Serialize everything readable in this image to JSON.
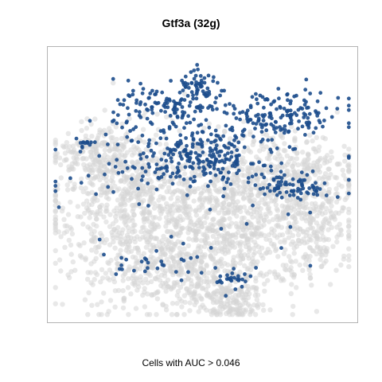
{
  "chart_data": {
    "type": "scatter",
    "title": "Gtf3a (32g)",
    "xlabel": "Cells with AUC > 0.046",
    "ylabel": "",
    "grid": false,
    "colors": {
      "background_cells": "#d6d6d6",
      "active_cells": "#1c4d8c",
      "frame": "#b3b3b3"
    },
    "series": [
      {
        "name": "",
        "role": "active",
        "clusters": [
          {
            "cx": 0.39,
            "cy": 0.78,
            "sx": 0.09,
            "sy": 0.05,
            "n": 140
          },
          {
            "cx": 0.5,
            "cy": 0.86,
            "sx": 0.04,
            "sy": 0.025,
            "n": 45
          },
          {
            "cx": 0.5,
            "cy": 0.6,
            "sx": 0.1,
            "sy": 0.05,
            "n": 220
          },
          {
            "cx": 0.75,
            "cy": 0.75,
            "sx": 0.11,
            "sy": 0.05,
            "n": 170
          },
          {
            "cx": 0.8,
            "cy": 0.49,
            "sx": 0.06,
            "sy": 0.025,
            "n": 80
          },
          {
            "cx": 0.26,
            "cy": 0.57,
            "sx": 0.1,
            "sy": 0.08,
            "n": 35
          },
          {
            "cx": 0.11,
            "cy": 0.65,
            "sx": 0.02,
            "sy": 0.01,
            "n": 14
          },
          {
            "cx": 0.6,
            "cy": 0.15,
            "sx": 0.03,
            "sy": 0.015,
            "n": 25
          },
          {
            "cx": 0.42,
            "cy": 0.2,
            "sx": 0.1,
            "sy": 0.03,
            "n": 18
          },
          {
            "cx": 0.45,
            "cy": 0.45,
            "sx": 0.3,
            "sy": 0.15,
            "n": 30
          },
          {
            "cx": 0.3,
            "cy": 0.2,
            "sx": 0.1,
            "sy": 0.05,
            "n": 12
          }
        ]
      },
      {
        "name": "",
        "role": "inactive",
        "clusters": [
          {
            "cx": 0.27,
            "cy": 0.45,
            "sx": 0.14,
            "sy": 0.13,
            "n": 700
          },
          {
            "cx": 0.62,
            "cy": 0.35,
            "sx": 0.16,
            "sy": 0.12,
            "n": 750
          },
          {
            "cx": 0.4,
            "cy": 0.18,
            "sx": 0.14,
            "sy": 0.08,
            "n": 400
          },
          {
            "cx": 0.72,
            "cy": 0.55,
            "sx": 0.14,
            "sy": 0.08,
            "n": 350
          },
          {
            "cx": 0.58,
            "cy": 0.07,
            "sx": 0.06,
            "sy": 0.04,
            "n": 150
          },
          {
            "cx": 0.87,
            "cy": 0.4,
            "sx": 0.05,
            "sy": 0.12,
            "n": 180
          },
          {
            "cx": 0.15,
            "cy": 0.62,
            "sx": 0.06,
            "sy": 0.05,
            "n": 150
          }
        ]
      }
    ]
  }
}
